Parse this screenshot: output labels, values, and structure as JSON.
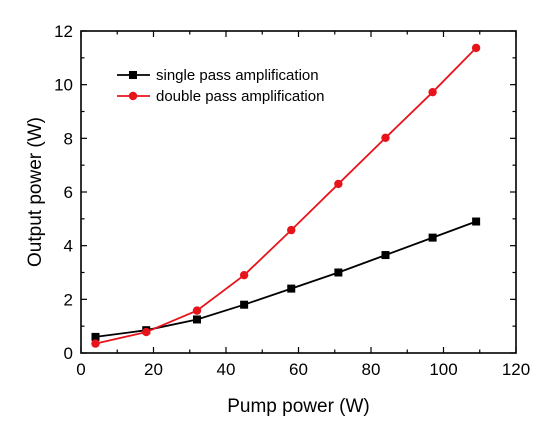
{
  "chart_data": {
    "type": "line",
    "xlabel": "Pump power (W)",
    "ylabel": "Output power (W)",
    "xlim": [
      0,
      120
    ],
    "ylim": [
      0,
      12
    ],
    "xticks": [
      "0",
      "20",
      "40",
      "60",
      "80",
      "100",
      "120"
    ],
    "yticks": [
      "0",
      "2",
      "4",
      "6",
      "8",
      "10",
      "12"
    ],
    "grid": false,
    "legend_position": "top-left",
    "series": [
      {
        "name": "single pass amplification",
        "color": "#000000",
        "marker": "square",
        "x": [
          4,
          18,
          32,
          45,
          58,
          71,
          84,
          97,
          109
        ],
        "y": [
          0.6,
          0.85,
          1.25,
          1.8,
          2.4,
          3.0,
          3.65,
          4.3,
          4.9
        ]
      },
      {
        "name": "double pass amplification",
        "color": "#e8141c",
        "marker": "circle",
        "x": [
          4,
          18,
          32,
          45,
          58,
          71,
          84,
          97,
          109
        ],
        "y": [
          0.35,
          0.78,
          1.58,
          2.9,
          4.58,
          6.3,
          8.02,
          9.72,
          11.37
        ]
      }
    ]
  }
}
